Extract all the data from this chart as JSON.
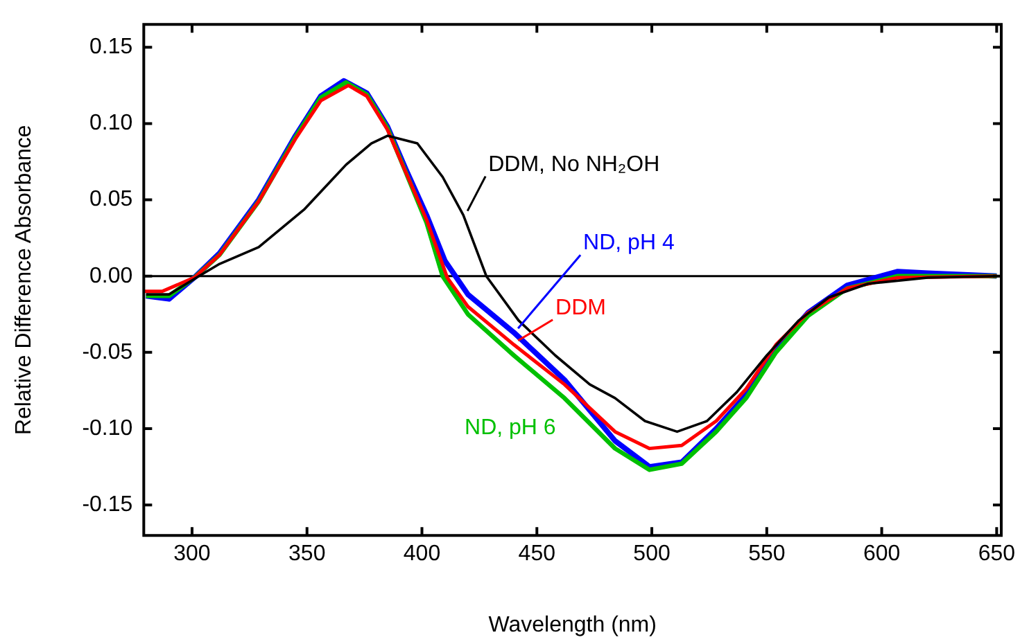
{
  "chart_data": {
    "type": "line",
    "xlabel": "Wavelength (nm)",
    "ylabel": "Relative Difference Absorbance",
    "xlim": [
      279,
      652
    ],
    "ylim": [
      -0.17,
      0.165
    ],
    "xticks": [
      300,
      350,
      400,
      450,
      500,
      550,
      600,
      650
    ],
    "yticks": [
      {
        "value": -0.15,
        "label": "-0.15"
      },
      {
        "value": -0.1,
        "label": "-0.10"
      },
      {
        "value": -0.05,
        "label": "-0.05"
      },
      {
        "value": 0,
        "label": "0.00"
      },
      {
        "value": 0.05,
        "label": "0.05"
      },
      {
        "value": 0.1,
        "label": "0.10"
      },
      {
        "value": 0.15,
        "label": "0.15"
      }
    ],
    "grid": false,
    "legend": false,
    "marker": "none",
    "line_style": "solid",
    "ref_lines": [
      {
        "axis": "y",
        "value": 0,
        "color": "#000000"
      }
    ],
    "series": [
      {
        "name": "ND, pH 4",
        "color": "#0000ff",
        "x": [
          280,
          290,
          301,
          312,
          329,
          345,
          356,
          366,
          376,
          385,
          393,
          402,
          410,
          420,
          440,
          462,
          484,
          499,
          513,
          528,
          541,
          554,
          568,
          585,
          607,
          620,
          650
        ],
        "values": [
          -0.013,
          -0.015,
          -0.001,
          0.015,
          0.05,
          0.092,
          0.118,
          0.128,
          0.12,
          0.098,
          0.07,
          0.04,
          0.01,
          -0.012,
          -0.037,
          -0.068,
          -0.108,
          -0.125,
          -0.122,
          -0.1,
          -0.078,
          -0.048,
          -0.024,
          -0.006,
          0.003,
          0.002,
          0
        ]
      },
      {
        "name": "ND, pH 6",
        "color": "#00c000",
        "x": [
          280,
          290,
          301,
          312,
          329,
          345,
          356,
          367,
          376,
          385,
          393,
          402,
          409,
          420,
          440,
          462,
          484,
          499,
          513,
          528,
          541,
          554,
          568,
          585,
          607,
          650
        ],
        "values": [
          -0.013,
          -0.013,
          -0.001,
          0.014,
          0.049,
          0.091,
          0.117,
          0.127,
          0.119,
          0.097,
          0.068,
          0.035,
          0,
          -0.025,
          -0.052,
          -0.08,
          -0.113,
          -0.127,
          -0.123,
          -0.102,
          -0.08,
          -0.05,
          -0.026,
          -0.008,
          0,
          0
        ]
      },
      {
        "name": "DDM",
        "color": "#ff0000",
        "x": [
          279,
          287,
          301,
          312,
          329,
          345,
          356,
          368,
          376,
          385,
          393,
          402,
          411,
          420,
          440,
          462,
          484,
          499,
          513,
          528,
          541,
          554,
          568,
          585,
          607,
          650
        ],
        "values": [
          -0.01,
          -0.01,
          -0.001,
          0.014,
          0.049,
          0.09,
          0.115,
          0.125,
          0.118,
          0.096,
          0.068,
          0.037,
          -0.001,
          -0.02,
          -0.045,
          -0.071,
          -0.102,
          -0.113,
          -0.111,
          -0.095,
          -0.074,
          -0.045,
          -0.024,
          -0.008,
          -0.001,
          0
        ]
      },
      {
        "name": "DDM, No NH₂OH",
        "color": "#000000",
        "x": [
          280,
          290,
          303,
          312,
          329,
          349,
          367,
          378,
          385,
          398,
          409,
          418,
          428,
          442,
          458,
          473,
          484,
          497,
          511,
          524,
          537,
          550,
          564,
          577,
          594,
          620,
          650
        ],
        "values": [
          -0.012,
          -0.012,
          0,
          0.008,
          0.019,
          0.044,
          0.073,
          0.087,
          0.092,
          0.087,
          0.065,
          0.04,
          0,
          -0.029,
          -0.052,
          -0.071,
          -0.08,
          -0.095,
          -0.102,
          -0.095,
          -0.076,
          -0.052,
          -0.029,
          -0.014,
          -0.005,
          -0.001,
          0
        ]
      }
    ]
  }
}
